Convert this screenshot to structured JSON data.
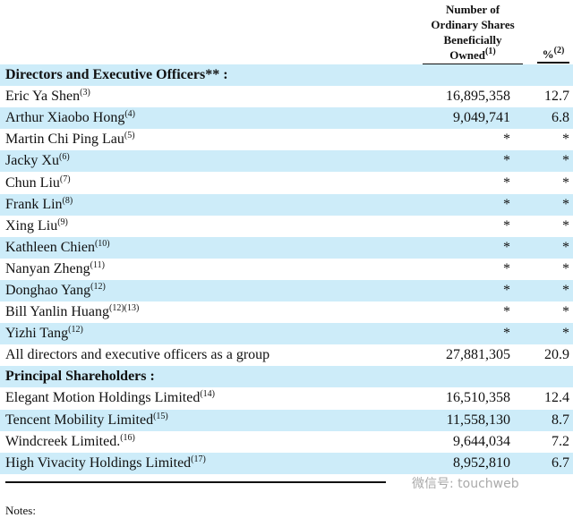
{
  "header": {
    "shares_lines": [
      "Number of",
      "Ordinary Shares",
      "Beneficially"
    ],
    "shares_last": "Owned",
    "shares_note": "(1)",
    "pct": "%",
    "pct_note": "(2)"
  },
  "rows": [
    {
      "name": "Directors and Executive Officers** :",
      "note": "",
      "shares": "",
      "pct": "",
      "section": true
    },
    {
      "name": "Eric Ya Shen",
      "note": "(3)",
      "shares": "16,895,358",
      "pct": "12.7"
    },
    {
      "name": "Arthur Xiaobo Hong",
      "note": "(4)",
      "shares": "9,049,741",
      "pct": "6.8"
    },
    {
      "name": "Martin Chi Ping Lau",
      "note": "(5)",
      "shares": "*",
      "pct": "*"
    },
    {
      "name": "Jacky Xu",
      "note": "(6)",
      "shares": "*",
      "pct": "*"
    },
    {
      "name": "Chun Liu",
      "note": "(7)",
      "shares": "*",
      "pct": "*"
    },
    {
      "name": "Frank Lin",
      "note": "(8)",
      "shares": "*",
      "pct": "*"
    },
    {
      "name": "Xing Liu",
      "note": "(9)",
      "shares": "*",
      "pct": "*"
    },
    {
      "name": "Kathleen Chien",
      "note": "(10)",
      "shares": "*",
      "pct": "*"
    },
    {
      "name": "Nanyan Zheng",
      "note": "(11)",
      "shares": "*",
      "pct": "*"
    },
    {
      "name": "Donghao Yang",
      "note": "(12)",
      "shares": "*",
      "pct": "*"
    },
    {
      "name": "Bill Yanlin Huang",
      "note": "(12)(13)",
      "shares": "*",
      "pct": "*"
    },
    {
      "name": "Yizhi Tang",
      "note": "(12)",
      "shares": "*",
      "pct": "*"
    },
    {
      "name": "All directors and executive officers as a group",
      "note": "",
      "shares": "27,881,305",
      "pct": "20.9"
    },
    {
      "name": "Principal Shareholders :",
      "note": "",
      "shares": "",
      "pct": "",
      "section": true
    },
    {
      "name": "Elegant Motion Holdings Limited",
      "note": "(14)",
      "shares": "16,510,358",
      "pct": "12.4"
    },
    {
      "name": "Tencent Mobility Limited",
      "note": "(15)",
      "shares": "11,558,130",
      "pct": "8.7"
    },
    {
      "name": "Windcreek Limited.",
      "note": "(16)",
      "shares": "9,644,034",
      "pct": "7.2"
    },
    {
      "name": "High Vivacity Holdings Limited",
      "note": "(17)",
      "shares": "8,952,810",
      "pct": "6.7"
    }
  ],
  "watermark": "微信号: touchweb",
  "notes_label": "Notes:"
}
